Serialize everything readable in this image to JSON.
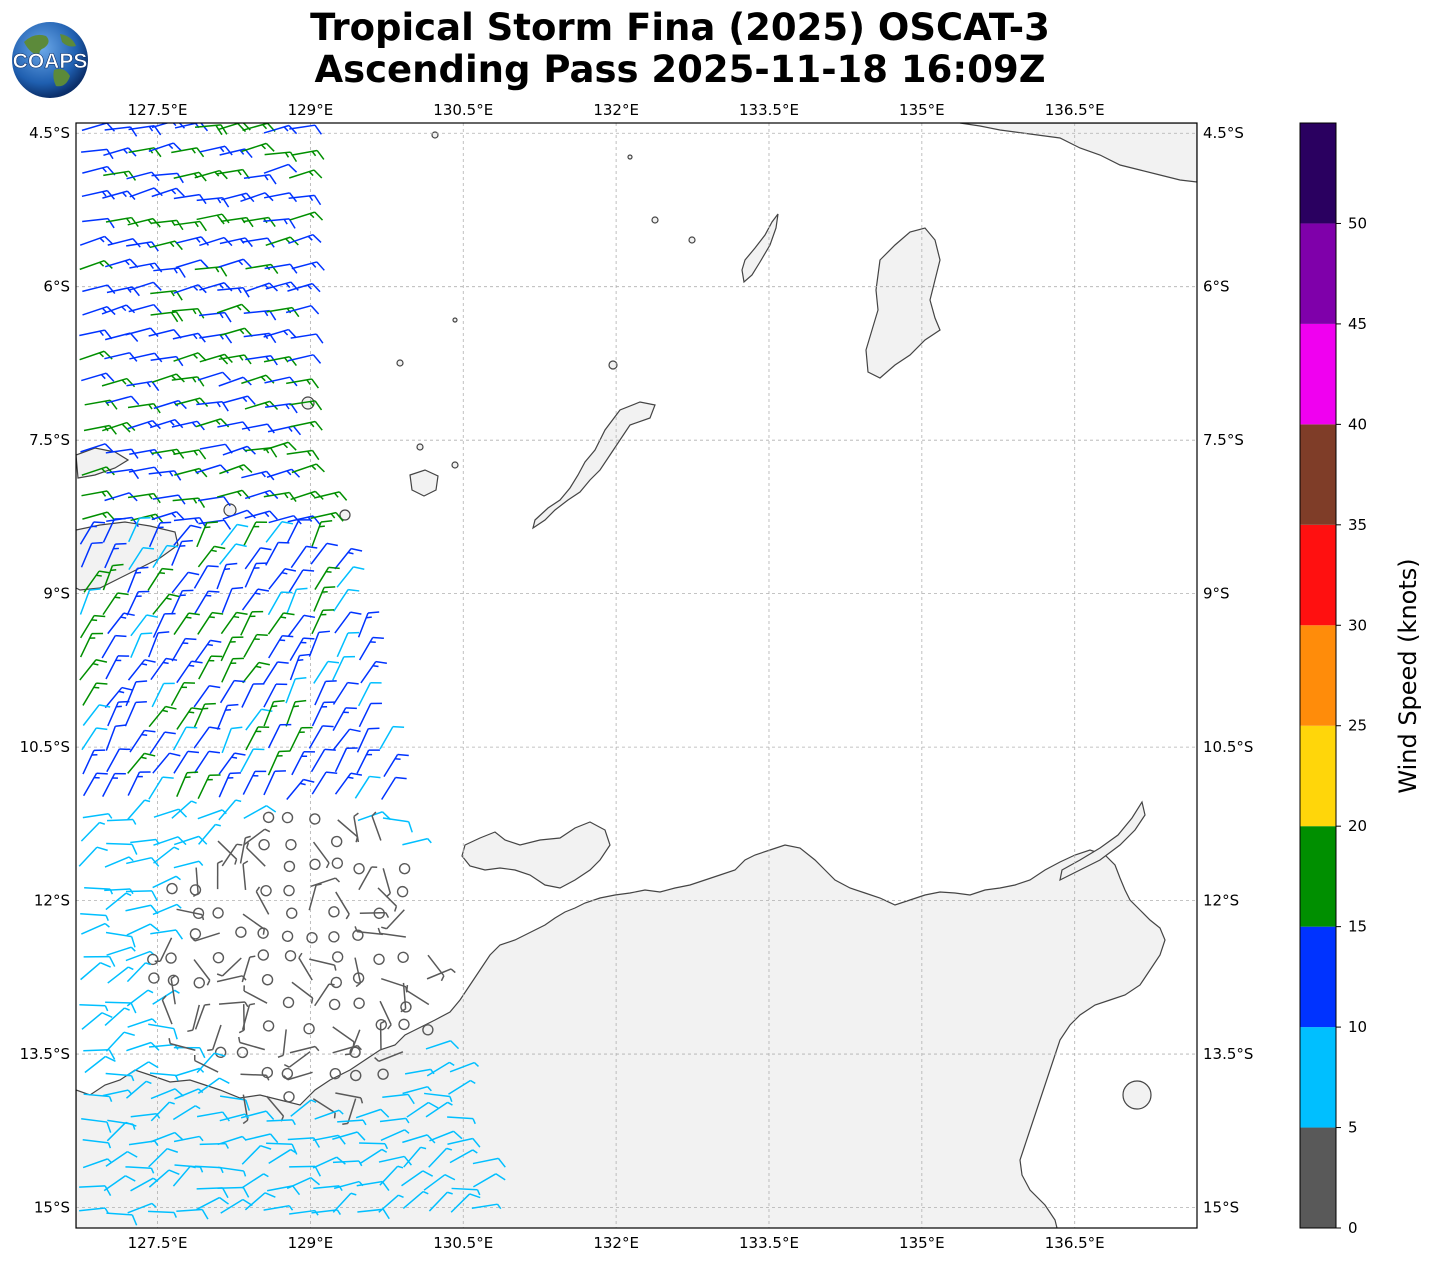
{
  "header": {
    "title_line1": "Tropical Storm Fina (2025) OSCAT-3",
    "title_line2": "Ascending Pass 2025-11-18 16:09Z",
    "logo_text": "COAPS"
  },
  "map": {
    "lon_range": [
      126.7,
      137.7
    ],
    "lat_range": [
      -15.2,
      -4.4
    ],
    "lon_ticks": [
      127.5,
      129,
      130.5,
      132,
      133.5,
      135,
      136.5
    ],
    "lon_tick_labels": [
      "127.5°E",
      "129°E",
      "130.5°E",
      "132°E",
      "133.5°E",
      "135°E",
      "136.5°E"
    ],
    "lat_ticks": [
      -4.5,
      -6,
      -7.5,
      -9,
      -10.5,
      -12,
      -13.5,
      -15
    ],
    "lat_tick_labels": [
      "4.5°S",
      "6°S",
      "7.5°S",
      "9°S",
      "10.5°S",
      "12°S",
      "13.5°S",
      "15°S"
    ],
    "gridlines": true,
    "ocean_color": "#ffffff",
    "land_color": "#f2f2f2",
    "coast_color": "#444444"
  },
  "colorbar": {
    "label": "Wind Speed (knots)",
    "ticks": [
      "0",
      "5",
      "10",
      "15",
      "20",
      "25",
      "30",
      "35",
      "40",
      "45",
      "50"
    ],
    "bins": [
      {
        "min": 0,
        "max": 5,
        "color": "#595959"
      },
      {
        "min": 5,
        "max": 10,
        "color": "#00bfff"
      },
      {
        "min": 10,
        "max": 15,
        "color": "#0033ff"
      },
      {
        "min": 15,
        "max": 20,
        "color": "#008f00"
      },
      {
        "min": 20,
        "max": 25,
        "color": "#ffd60a"
      },
      {
        "min": 25,
        "max": 30,
        "color": "#ff8c0a"
      },
      {
        "min": 30,
        "max": 35,
        "color": "#ff1010"
      },
      {
        "min": 35,
        "max": 40,
        "color": "#7f3d28"
      },
      {
        "min": 40,
        "max": 45,
        "color": "#f000f0"
      },
      {
        "min": 45,
        "max": 50,
        "color": "#7f00aa"
      },
      {
        "min": 50,
        "max": 55,
        "color": "#2a0060"
      }
    ]
  }
}
